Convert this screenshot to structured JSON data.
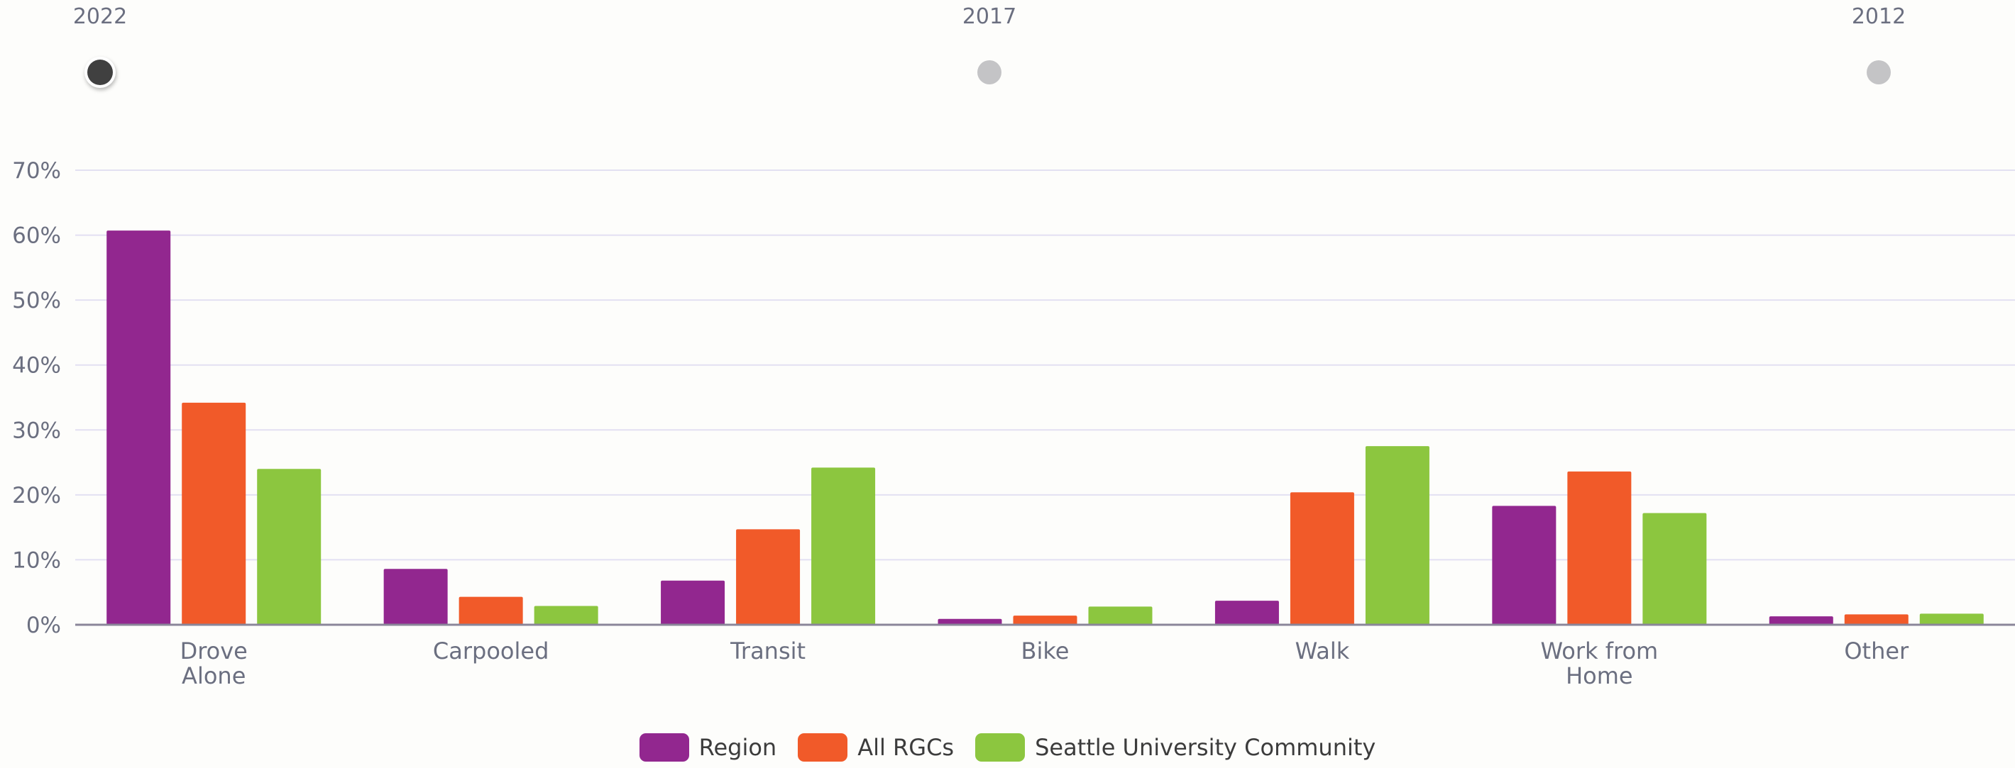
{
  "timeline": {
    "years": [
      {
        "label": "2022",
        "active": true
      },
      {
        "label": "2017",
        "active": false
      },
      {
        "label": "2012",
        "active": false
      }
    ]
  },
  "colors": {
    "active_dot": "#404040",
    "inactive_dot": "#c4c4c6",
    "gridline": "#e3e0f2",
    "axis": "#8a8699",
    "tick_text": "#6b6f80",
    "category_text": "#6b6f80"
  },
  "chart_data": {
    "type": "bar",
    "categories": [
      [
        "Drove",
        "Alone"
      ],
      [
        "Carpooled"
      ],
      [
        "Transit"
      ],
      [
        "Bike"
      ],
      [
        "Walk"
      ],
      [
        "Work from",
        "Home"
      ],
      [
        "Other"
      ]
    ],
    "series": [
      {
        "name": "Region",
        "color": "#92278f",
        "values": [
          60.7,
          8.6,
          6.8,
          0.9,
          3.7,
          18.3,
          1.3
        ]
      },
      {
        "name": "All RGCs",
        "color": "#f15a29",
        "values": [
          34.2,
          4.3,
          14.7,
          1.4,
          20.4,
          23.6,
          1.6
        ]
      },
      {
        "name": "Seattle University Community",
        "color": "#8cc63f",
        "values": [
          24.0,
          2.9,
          24.2,
          2.8,
          27.5,
          17.2,
          1.7
        ]
      }
    ],
    "ylim": [
      0,
      70
    ],
    "yticks": [
      "0%",
      "10%",
      "20%",
      "30%",
      "40%",
      "50%",
      "60%",
      "70%"
    ],
    "grid": true,
    "legend": "bottom-center"
  }
}
